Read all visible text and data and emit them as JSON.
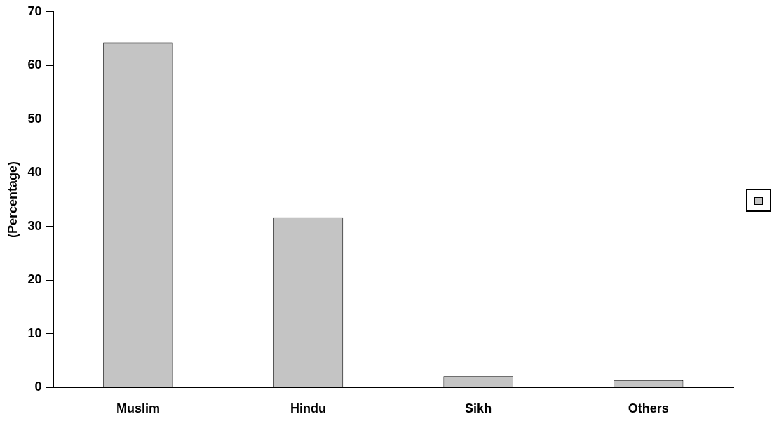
{
  "chart_data": {
    "type": "bar",
    "ylabel": "(Percentage)",
    "categories": [
      "Muslim",
      "Hindu",
      "Sikh",
      "Others"
    ],
    "series": [
      {
        "color": "#c4c4c4",
        "values": [
          64.3,
          31.7,
          2.1,
          1.4
        ]
      }
    ],
    "ylim": [
      0,
      70
    ],
    "yticks": [
      0,
      10,
      20,
      30,
      40,
      50,
      60,
      70
    ],
    "grid": false
  }
}
